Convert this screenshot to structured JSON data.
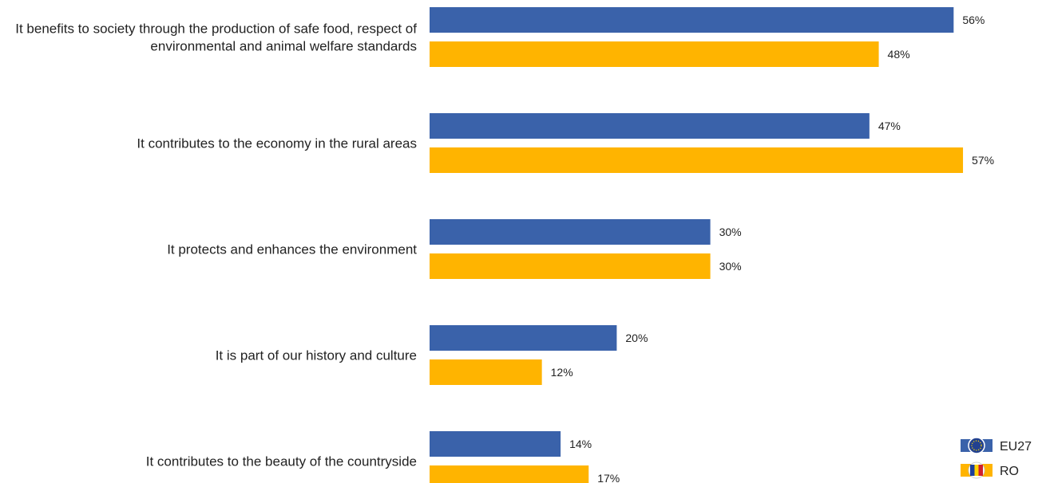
{
  "chart_data": {
    "type": "bar",
    "orientation": "horizontal",
    "categories": [
      [
        "It benefits to society through the production of safe food, respect of",
        "environmental and animal welfare standards"
      ],
      [
        "It contributes to the economy in the rural areas"
      ],
      [
        "It protects and enhances the environment"
      ],
      [
        "It is part of our history and culture"
      ],
      [
        "It contributes to the beauty of the countryside"
      ]
    ],
    "series": [
      {
        "name": "EU27",
        "color": "#3a62aa",
        "values": [
          56,
          47,
          30,
          20,
          14
        ],
        "labels": [
          "56%",
          "47%",
          "30%",
          "20%",
          "14%"
        ]
      },
      {
        "name": "RO",
        "color": "#ffb400",
        "values": [
          48,
          57,
          30,
          12,
          17
        ],
        "labels": [
          "48%",
          "57%",
          "30%",
          "12%",
          "17%"
        ]
      }
    ],
    "value_suffix": "%",
    "xlim": [
      0,
      57
    ],
    "grid": false,
    "legend_position": "bottom-right",
    "legend_icons": [
      "eu-flag-icon",
      "ro-flag-icon"
    ]
  }
}
